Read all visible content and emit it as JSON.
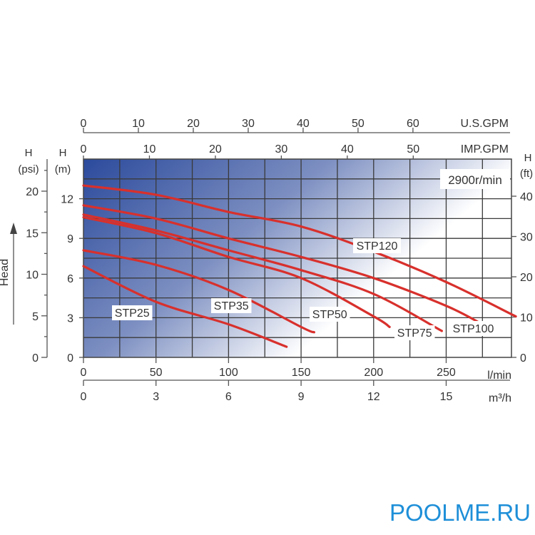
{
  "chart_data": {
    "type": "line",
    "title": "",
    "speed_label": "2900r/min",
    "xlabel": "l/min",
    "ylabel": "H (m)",
    "side_label": "Head",
    "xlim": [
      0,
      295
    ],
    "ylim": [
      0,
      15
    ],
    "grid": true,
    "x_ticks": [
      0,
      50,
      100,
      150,
      200,
      250
    ],
    "y_ticks": [
      0,
      3,
      6,
      9,
      12
    ],
    "axes": {
      "us_gpm": {
        "label": "U.S.GPM",
        "ticks": [
          0,
          10,
          20,
          30,
          40,
          50,
          60
        ]
      },
      "imp_gpm": {
        "label": "IMP.GPM",
        "ticks": [
          0,
          10,
          20,
          30,
          40,
          50
        ]
      },
      "m3h": {
        "label": "m³/h",
        "ticks": [
          0,
          3,
          6,
          9,
          12,
          15
        ]
      },
      "psi": {
        "label_top": "H",
        "label_bottom": "(psi)",
        "ticks": [
          0,
          5,
          10,
          15,
          20
        ]
      },
      "m": {
        "label_top": "H",
        "label_bottom": "(m)"
      },
      "ft": {
        "label_top": "H",
        "label_bottom": "(ft)",
        "ticks": [
          0,
          10,
          20,
          30,
          40
        ]
      }
    },
    "series": [
      {
        "name": "STP25",
        "x": [
          0,
          50,
          100,
          140
        ],
        "y": [
          6.9,
          4.2,
          2.5,
          0.8
        ]
      },
      {
        "name": "STP35",
        "x": [
          0,
          50,
          100,
          150,
          159
        ],
        "y": [
          8.1,
          7.0,
          5.1,
          2.3,
          1.9
        ]
      },
      {
        "name": "STP50",
        "x": [
          0,
          50,
          100,
          150,
          200,
          211
        ],
        "y": [
          10.6,
          9.4,
          7.6,
          6.0,
          3.1,
          2.3
        ]
      },
      {
        "name": "STP75",
        "x": [
          0,
          50,
          100,
          150,
          200,
          247
        ],
        "y": [
          10.8,
          9.6,
          8.1,
          6.6,
          4.8,
          2.0
        ]
      },
      {
        "name": "STP100",
        "x": [
          0,
          50,
          100,
          150,
          200,
          250,
          275
        ],
        "y": [
          11.5,
          10.5,
          9.0,
          7.6,
          6.0,
          3.9,
          2.5
        ]
      },
      {
        "name": "STP120",
        "x": [
          0,
          50,
          100,
          150,
          200,
          250,
          298
        ],
        "y": [
          13.0,
          12.3,
          11.0,
          9.9,
          8.0,
          5.7,
          3.1
        ]
      }
    ],
    "line_color": "#d8302c"
  },
  "watermark": "POOLME.RU"
}
